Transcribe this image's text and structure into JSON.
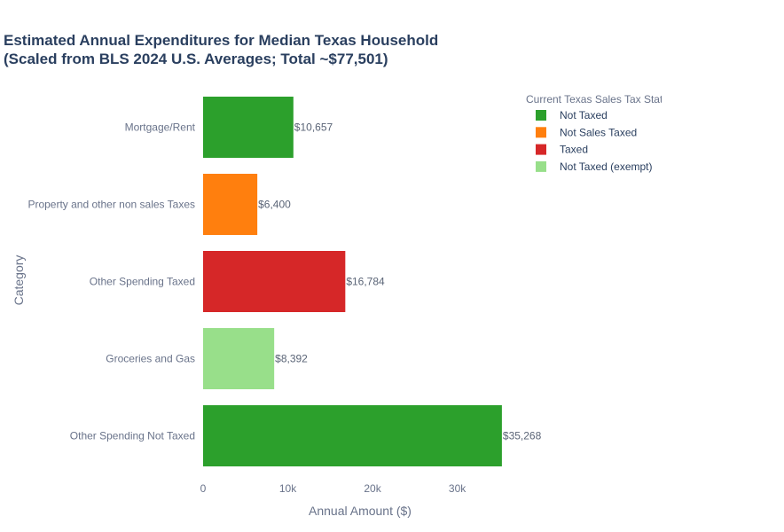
{
  "chart_data": {
    "type": "bar",
    "orientation": "horizontal",
    "title": "Estimated Annual Expenditures for Median Texas Household",
    "subtitle": "(Scaled from BLS 2024 U.S. Averages; Total ~$77,501)",
    "xlabel": "Annual Amount ($)",
    "ylabel": "Category",
    "xlim": [
      0,
      38000
    ],
    "xticks": [
      {
        "value": 0,
        "label": "0"
      },
      {
        "value": 10000,
        "label": "10k"
      },
      {
        "value": 20000,
        "label": "20k"
      },
      {
        "value": 30000,
        "label": "30k"
      }
    ],
    "grid": false,
    "legend": {
      "title": "Current Texas Sales Tax Stat",
      "placement": "top-right",
      "entries": [
        {
          "label": "Not Taxed",
          "color": "#2ca02c"
        },
        {
          "label": "Not Sales Taxed",
          "color": "#ff7f0e"
        },
        {
          "label": "Taxed",
          "color": "#d62728"
        },
        {
          "label": "Not Taxed (exempt)",
          "color": "#98df8a"
        }
      ]
    },
    "bars": [
      {
        "category": "Mortgage/Rent",
        "value": 10657,
        "label": "$10,657",
        "status": "Not Taxed",
        "color": "#2ca02c"
      },
      {
        "category": "Property and other non sales Taxes",
        "value": 6400,
        "label": "$6,400",
        "status": "Not Sales Taxed",
        "color": "#ff7f0e"
      },
      {
        "category": "Other Spending Taxed",
        "value": 16784,
        "label": "$16,784",
        "status": "Taxed",
        "color": "#d62728"
      },
      {
        "category": "Groceries and Gas",
        "value": 8392,
        "label": "$8,392",
        "status": "Not Taxed (exempt)",
        "color": "#98df8a"
      },
      {
        "category": "Other Spending Not Taxed",
        "value": 35268,
        "label": "$35,268",
        "status": "Not Taxed",
        "color": "#2ca02c"
      }
    ]
  }
}
